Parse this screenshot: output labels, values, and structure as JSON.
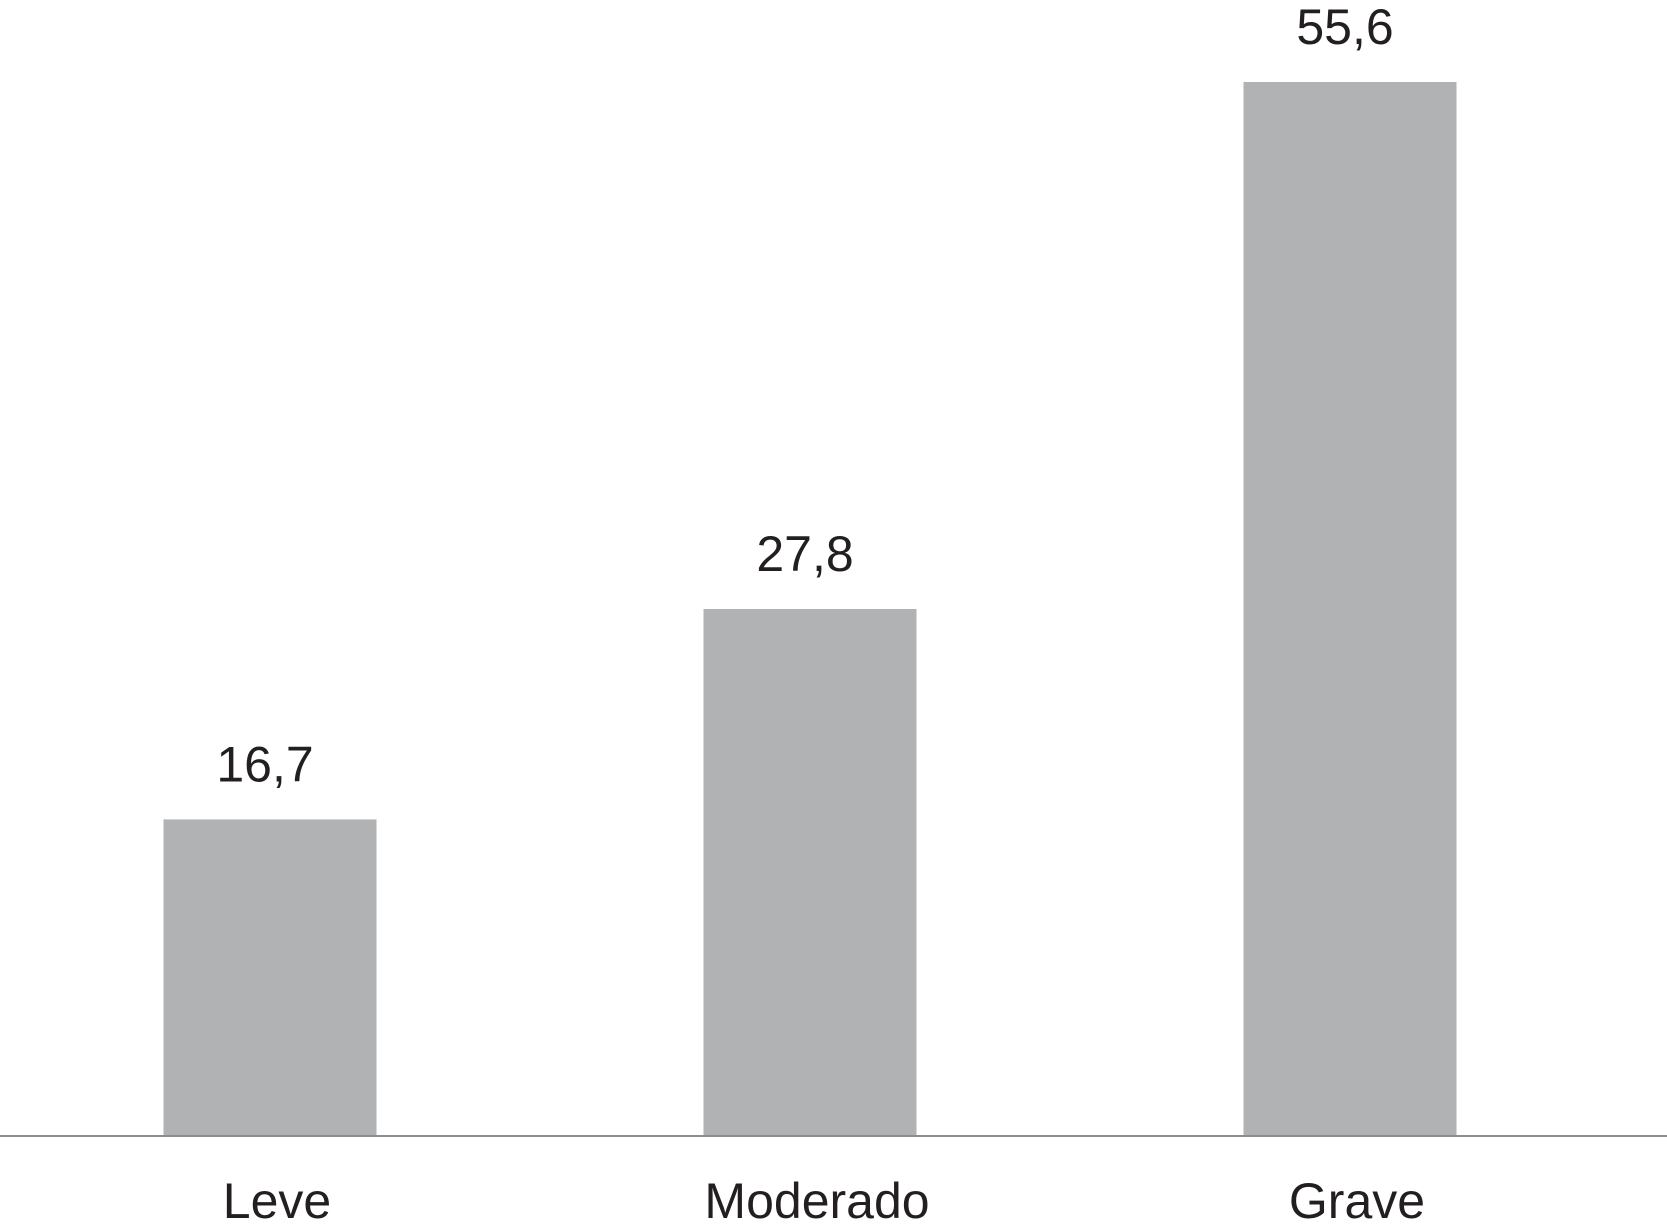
{
  "chart_data": {
    "type": "bar",
    "categories": [
      "Leve",
      "Moderado",
      "Grave"
    ],
    "values": [
      16.7,
      27.8,
      55.6
    ],
    "value_labels": [
      "16,7",
      "27,8",
      "55,6"
    ],
    "ylim": [
      0,
      55.6
    ],
    "grid": false,
    "legend": "none",
    "bar_color": "#b1b2b4",
    "axis_color": "#8c8d8f",
    "text_color": "#231f20"
  }
}
